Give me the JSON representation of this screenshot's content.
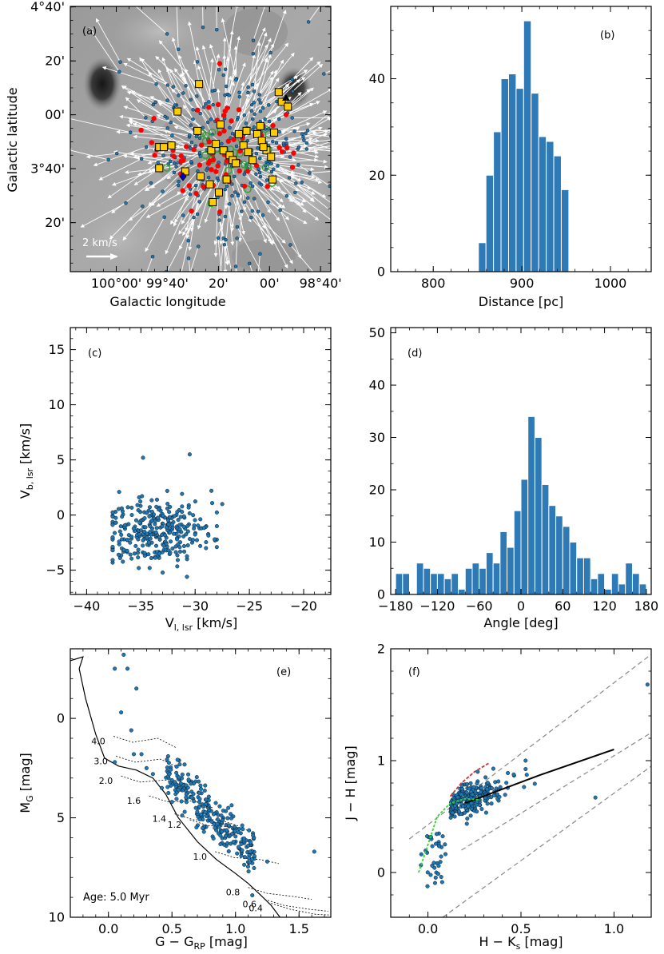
{
  "chart_data": [
    {
      "panel": "a",
      "type": "scatter",
      "label": "(a)",
      "xlabel": "Galactic longitude",
      "ylabel": "Galactic latitude",
      "xlim_deg": [
        100.3,
        98.6
      ],
      "ylim_deg": [
        3.03,
        4.67
      ],
      "x_ticks": [
        {
          "v": 100.0,
          "t": "100°00'"
        },
        {
          "v": 99.667,
          "t": "99°40'"
        },
        {
          "v": 99.333,
          "t": "20'"
        },
        {
          "v": 99.0,
          "t": "00'"
        },
        {
          "v": 98.667,
          "t": "98°40'"
        }
      ],
      "y_ticks": [
        {
          "v": 4.667,
          "t": "4°40'"
        },
        {
          "v": 4.333,
          "t": "20'"
        },
        {
          "v": 4.0,
          "t": "00'"
        },
        {
          "v": 3.667,
          "t": "3°40'"
        },
        {
          "v": 3.333,
          "t": "20'"
        }
      ],
      "scale_arrow_label": "2 km/s",
      "background": "grayscale dust extinction map",
      "marker_colors": {
        "members": "#1f77b4",
        "red_sources": "#ff0000",
        "yellow_squares": "#ffcc00",
        "green_circles": "#2ca02c",
        "arrows": "#ffffff"
      },
      "yellow_squares": [
        [
          99.46,
          4.19
        ],
        [
          99.6,
          4.02
        ],
        [
          99.47,
          3.9
        ],
        [
          99.72,
          3.8
        ],
        [
          99.69,
          3.8
        ],
        [
          99.64,
          3.81
        ],
        [
          99.72,
          3.67
        ],
        [
          99.55,
          3.65
        ],
        [
          99.45,
          3.62
        ],
        [
          99.39,
          3.57
        ],
        [
          99.33,
          3.52
        ],
        [
          99.37,
          3.46
        ],
        [
          99.38,
          3.78
        ],
        [
          99.35,
          3.82
        ],
        [
          99.32,
          3.94
        ],
        [
          99.3,
          3.78
        ],
        [
          99.26,
          3.75
        ],
        [
          99.24,
          3.72
        ],
        [
          99.2,
          3.88
        ],
        [
          99.17,
          3.81
        ],
        [
          99.14,
          3.77
        ],
        [
          99.11,
          3.72
        ],
        [
          99.08,
          3.88
        ],
        [
          99.05,
          3.84
        ],
        [
          99.02,
          3.78
        ],
        [
          98.99,
          3.74
        ],
        [
          98.97,
          3.89
        ],
        [
          98.94,
          4.14
        ],
        [
          98.92,
          4.08
        ],
        [
          98.88,
          4.05
        ],
        [
          99.22,
          3.7
        ],
        [
          99.28,
          3.6
        ],
        [
          99.15,
          3.9
        ],
        [
          98.98,
          3.6
        ],
        [
          99.06,
          3.93
        ],
        [
          99.04,
          3.8
        ]
      ],
      "red_points_count": 70,
      "blue_points_count": 300
    },
    {
      "panel": "b",
      "type": "bar",
      "label": "(b)",
      "xlabel": "Distance [pc]",
      "ylabel": "",
      "xlim": [
        752,
        1046
      ],
      "ylim": [
        0,
        55
      ],
      "x_ticks": [
        800,
        900,
        1000
      ],
      "y_ticks": [
        0,
        20,
        40
      ],
      "bin_width": 8.5,
      "bin_start": 851,
      "values": [
        6,
        20,
        29,
        40,
        41,
        38,
        52,
        37,
        28,
        27,
        24,
        17
      ],
      "color": "#2e7ab6"
    },
    {
      "panel": "c",
      "type": "scatter",
      "label": "(c)",
      "xlabel": "V",
      "xlabel_sub": "l, lsr",
      "xlabel_unit": " [km/s]",
      "ylabel": "V",
      "ylabel_sub": "b, lsr",
      "ylabel_unit": " [km/s]",
      "xlim": [
        -41.5,
        -17.5
      ],
      "ylim": [
        -7.2,
        17
      ],
      "x_ticks": [
        -40,
        -35,
        -30,
        -25,
        -20
      ],
      "y_ticks": [
        -5,
        0,
        5,
        10,
        15
      ],
      "center": [
        -33.5,
        -1.5
      ],
      "spread": [
        2.4,
        1.6
      ],
      "n_points": 300,
      "extra_points": [
        [
          -34.8,
          5.2
        ],
        [
          -30.5,
          5.5
        ],
        [
          -28.5,
          2.2
        ],
        [
          -27.5,
          1.0
        ],
        [
          -37.0,
          2.1
        ],
        [
          -29.0,
          -3.0
        ],
        [
          -28.2,
          -2.2
        ]
      ],
      "color": "#1f77b4"
    },
    {
      "panel": "d",
      "type": "bar",
      "label": "(d)",
      "xlabel": "Angle [deg]",
      "ylabel": "",
      "xlim": [
        -187,
        187
      ],
      "ylim": [
        0,
        51
      ],
      "x_ticks": [
        {
          "v": -180,
          "t": "−180"
        },
        {
          "v": -120,
          "t": "−120"
        },
        {
          "v": -60,
          "t": "−60"
        },
        {
          "v": 0,
          "t": "0"
        },
        {
          "v": 60,
          "t": "60"
        },
        {
          "v": 120,
          "t": "120"
        },
        {
          "v": 180,
          "t": "180"
        }
      ],
      "y_ticks": [
        0,
        10,
        20,
        30,
        40,
        50
      ],
      "bin_width": 10,
      "bin_start": -180,
      "values": [
        4,
        4,
        0,
        6,
        5,
        4,
        4,
        3,
        4,
        1,
        5,
        6,
        5,
        8,
        6,
        12,
        9,
        16,
        22,
        34,
        30,
        21,
        17,
        15,
        13,
        10,
        7,
        7,
        3,
        4,
        1,
        4,
        2,
        6,
        4,
        2
      ],
      "color": "#2e7ab6"
    },
    {
      "panel": "e",
      "type": "scatter",
      "label": "(e)",
      "xlabel": "G − G",
      "xlabel_sub": "RP",
      "xlabel_unit": " [mag]",
      "ylabel": "M",
      "ylabel_sub": "G",
      "ylabel_unit": " [mag]",
      "xlim": [
        -0.3,
        1.75
      ],
      "ylim": [
        10,
        -3.5
      ],
      "x_ticks": [
        0.0,
        0.5,
        1.0,
        1.5
      ],
      "x_tick_labels": [
        "0.0",
        "0.5",
        "1.0",
        "1.5"
      ],
      "y_ticks": [
        0,
        5,
        10
      ],
      "isochrone_label": "Age: 5.0 Myr",
      "track_labels": [
        {
          "t": "4.0",
          "x": -0.08,
          "y": 1.3
        },
        {
          "t": "3.0",
          "x": -0.06,
          "y": 2.3
        },
        {
          "t": "2.0",
          "x": -0.02,
          "y": 3.3
        },
        {
          "t": "1.6",
          "x": 0.2,
          "y": 4.3
        },
        {
          "t": "1.4",
          "x": 0.4,
          "y": 5.2
        },
        {
          "t": "1.2",
          "x": 0.52,
          "y": 5.5
        },
        {
          "t": "1.0",
          "x": 0.72,
          "y": 7.1
        },
        {
          "t": "0.8",
          "x": 0.98,
          "y": 8.9
        },
        {
          "t": "0.6",
          "x": 1.11,
          "y": 9.5
        },
        {
          "t": "0.4",
          "x": 1.16,
          "y": 9.7
        }
      ],
      "isochrone": [
        [
          -0.3,
          -2.9
        ],
        [
          -0.2,
          -3.1
        ],
        [
          -0.23,
          -2.5
        ],
        [
          -0.18,
          -1.0
        ],
        [
          -0.1,
          0.8
        ],
        [
          -0.03,
          2.0
        ],
        [
          0.08,
          2.4
        ],
        [
          0.22,
          2.6
        ],
        [
          0.35,
          3.0
        ],
        [
          0.45,
          3.8
        ],
        [
          0.55,
          5.0
        ],
        [
          0.7,
          6.2
        ],
        [
          0.85,
          7.1
        ],
        [
          1.0,
          7.8
        ],
        [
          1.1,
          8.3
        ],
        [
          1.2,
          8.9
        ],
        [
          1.28,
          9.4
        ],
        [
          1.35,
          10.0
        ]
      ],
      "color": "#1f77b4"
    },
    {
      "panel": "f",
      "type": "scatter",
      "label": "(f)",
      "xlabel": "H − K",
      "xlabel_sub": "s",
      "xlabel_unit": " [mag]",
      "ylabel": "J − H [mag]",
      "xlim": [
        -0.2,
        1.2
      ],
      "ylim": [
        -0.4,
        2.0
      ],
      "x_ticks": [
        0.0,
        0.5,
        1.0
      ],
      "x_tick_labels": [
        "0.0",
        "0.5",
        "1.0"
      ],
      "y_ticks": [
        0,
        1,
        2
      ],
      "reddening_lines": [
        [
          [
            -0.1,
            0.3
          ],
          [
            1.2,
            1.95
          ]
        ],
        [
          [
            0.18,
            0.2
          ],
          [
            1.2,
            1.25
          ]
        ],
        [
          [
            0.08,
            -0.4
          ],
          [
            1.2,
            0.95
          ]
        ]
      ],
      "ctts_locus": [
        [
          0.2,
          0.62
        ],
        [
          0.6,
          0.87
        ],
        [
          1.0,
          1.1
        ]
      ],
      "dwarf_locus": [
        [
          -0.05,
          0.0
        ],
        [
          0.0,
          0.25
        ],
        [
          0.05,
          0.5
        ],
        [
          0.12,
          0.62
        ],
        [
          0.2,
          0.66
        ],
        [
          0.28,
          0.65
        ]
      ],
      "giant_locus": [
        [
          0.12,
          0.68
        ],
        [
          0.18,
          0.8
        ],
        [
          0.25,
          0.9
        ],
        [
          0.33,
          0.98
        ]
      ],
      "outliers": [
        [
          1.18,
          1.68
        ],
        [
          0.9,
          0.67
        ]
      ],
      "color": "#1f77b4"
    }
  ]
}
